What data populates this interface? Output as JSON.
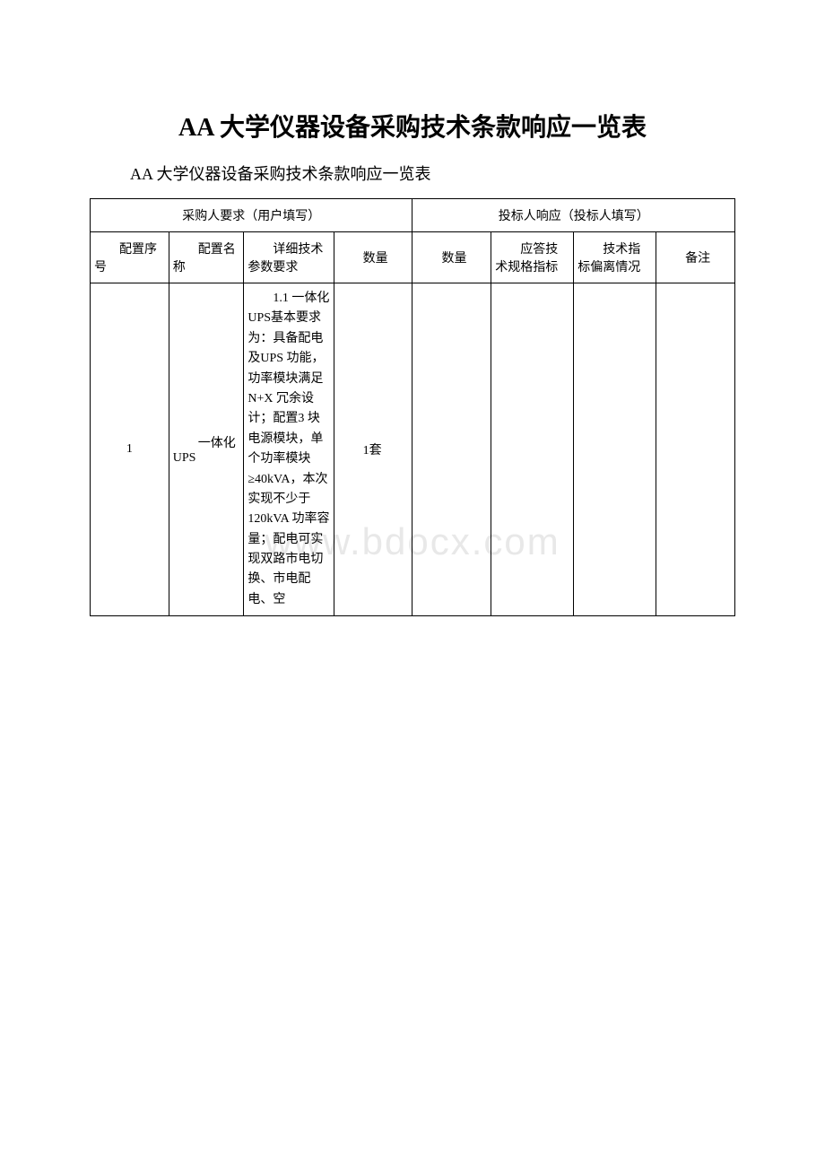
{
  "title": "AA 大学仪器设备采购技术条款响应一览表",
  "subtitle": "AA 大学仪器设备采购技术条款响应一览表",
  "watermark": "www.bdocx.com",
  "table": {
    "group_headers": {
      "buyer": "采购人要求（用户填写）",
      "bidder": "投标人响应（投标人填写）"
    },
    "columns": {
      "config_no": "　　配置序号",
      "config_name": "　　配置名称",
      "spec": "　　详细技术参数要求",
      "qty1": "　　数量",
      "qty2": "　　数量",
      "response_spec": "　　应答技术规格指标",
      "deviation": "　　技术指标偏离情况",
      "remark": "　　备注"
    },
    "rows": [
      {
        "config_no": "1",
        "config_name": "　　一体化UPS",
        "spec": "　　1.1 一体化 UPS基本要求为：具备配电及UPS 功能，功率模块满足N+X 冗余设计；配置3 块电源模块，单个功率模块≥40kVA，本次实现不少于120kVA 功率容量；配电可实现双路市电切换、市电配电、空",
        "qty1": "　　1套",
        "qty2": "",
        "response_spec": "",
        "deviation": "",
        "remark": ""
      }
    ]
  },
  "styles": {
    "title_fontsize": 28,
    "subtitle_fontsize": 18,
    "cell_fontsize": 14,
    "border_color": "#000000",
    "text_color": "#000000",
    "background_color": "#ffffff",
    "watermark_color": "#e8e8e8"
  }
}
